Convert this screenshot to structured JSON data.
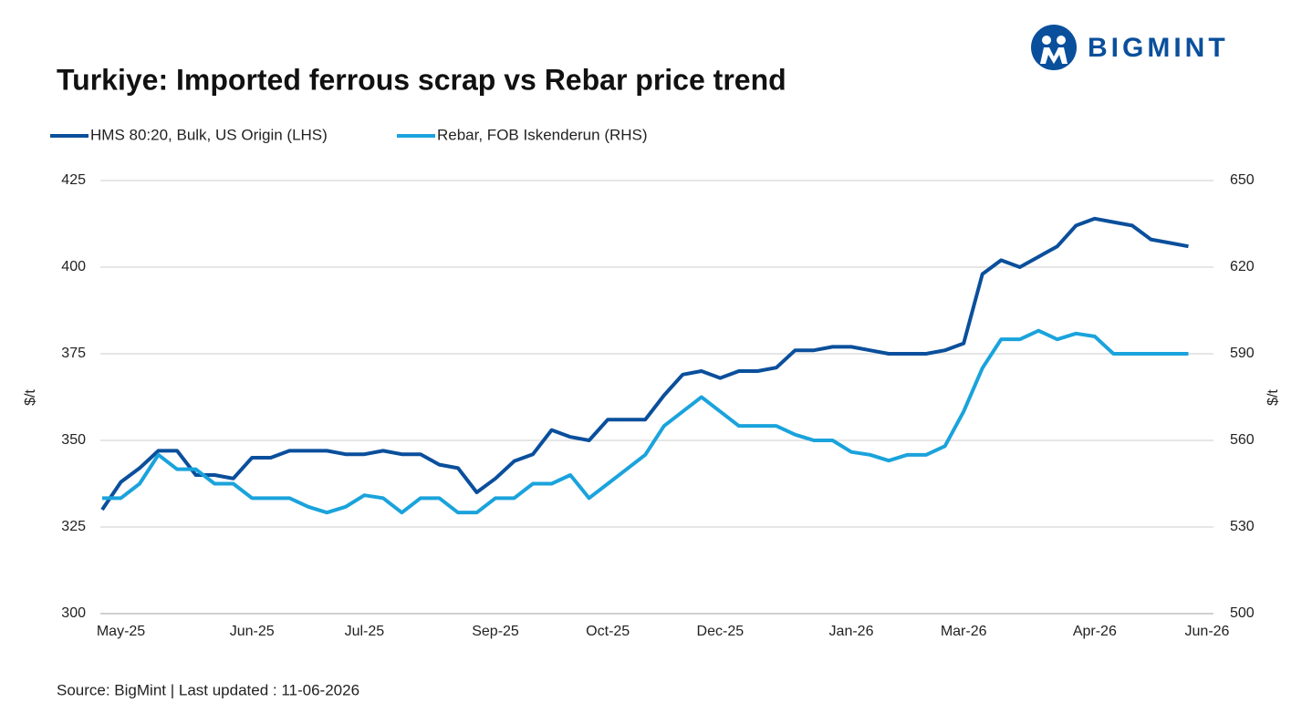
{
  "logo": "BIGMINT",
  "source": "Source: BigMint | Last updated : 11-06-2026",
  "chart_data": {
    "type": "line",
    "title": "Turkiye: Imported ferrous scrap vs Rebar price trend",
    "y_label": "$/t",
    "y2_label": "$/t",
    "categories": [
      null,
      "May-25",
      null,
      null,
      null,
      null,
      null,
      null,
      "Jun-25",
      null,
      null,
      null,
      null,
      null,
      "Jul-25",
      null,
      null,
      null,
      null,
      null,
      null,
      "Sep-25",
      null,
      null,
      null,
      null,
      null,
      "Oct-25",
      null,
      null,
      null,
      null,
      null,
      "Dec-25",
      null,
      null,
      null,
      null,
      null,
      null,
      "Jan-26",
      null,
      null,
      null,
      null,
      null,
      "Mar-26",
      null,
      null,
      null,
      null,
      null,
      null,
      "Apr-26",
      null,
      null,
      null,
      null,
      null,
      "Jun-26"
    ],
    "series": [
      {
        "name": "HMS 80:20, Bulk, US Origin (LHS)",
        "color": "#0a4f9c",
        "axis": "y",
        "values": [
          330,
          338,
          342,
          347,
          347,
          340,
          340,
          339,
          345,
          345,
          347,
          347,
          347,
          346,
          346,
          347,
          346,
          346,
          343,
          342,
          335,
          339,
          344,
          346,
          353,
          351,
          350,
          356,
          356,
          356,
          363,
          369,
          370,
          368,
          370,
          370,
          371,
          376,
          376,
          377,
          377,
          376,
          375,
          375,
          375,
          376,
          378,
          398,
          402,
          400,
          403,
          406,
          412,
          414,
          413,
          412,
          408,
          407,
          406,
          null
        ]
      },
      {
        "name": "Rebar, FOB Iskenderun (RHS)",
        "color": "#1aa3dc",
        "axis": "y2",
        "values": [
          540,
          540,
          545,
          555,
          550,
          550,
          545,
          545,
          540,
          540,
          540,
          537,
          535,
          537,
          541,
          540,
          535,
          540,
          540,
          535,
          535,
          540,
          540,
          545,
          545,
          548,
          540,
          545,
          550,
          555,
          565,
          570,
          575,
          570,
          565,
          565,
          565,
          562,
          560,
          560,
          556,
          555,
          553,
          555,
          555,
          558,
          570,
          585,
          595,
          595,
          598,
          595,
          597,
          596,
          590,
          590,
          590,
          590,
          590,
          null
        ]
      }
    ],
    "ylim": [
      300,
      425
    ],
    "yticks": [
      300,
      325,
      350,
      375,
      400,
      425
    ],
    "y2lim": [
      500,
      650
    ],
    "y2ticks": [
      500,
      530,
      560,
      590,
      620,
      650
    ],
    "grid": true,
    "legend": "top-left"
  }
}
